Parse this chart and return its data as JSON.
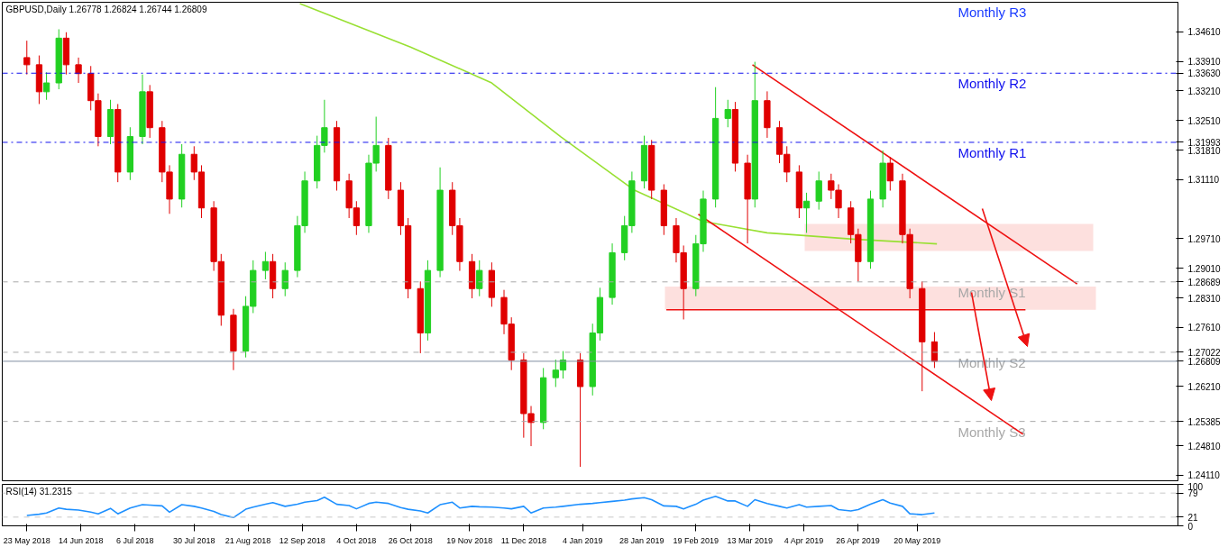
{
  "chart_data": [
    {
      "type": "candlestick",
      "title": "GBPUSD,Daily 1.26778 1.26824 1.26744 1.26809",
      "tick_labels": "y",
      "grid": false,
      "xlim": [
        "2018-05-13",
        "2019-09-03"
      ],
      "ylim": [
        1.2398,
        1.3531
      ],
      "yticks": [
        {
          "value": 1.2411,
          "label": "1.24110"
        },
        {
          "value": 1.2481,
          "label": "1.24810"
        },
        {
          "value": 1.25385,
          "label": "1.25385"
        },
        {
          "value": 1.2621,
          "label": "1.26210"
        },
        {
          "value": 1.26809,
          "label": "1.26809"
        },
        {
          "value": 1.27022,
          "label": "1.27022"
        },
        {
          "value": 1.2761,
          "label": "1.27610"
        },
        {
          "value": 1.2831,
          "label": "1.28310"
        },
        {
          "value": 1.28689,
          "label": "1.28689"
        },
        {
          "value": 1.2901,
          "label": "1.29010"
        },
        {
          "value": 1.2971,
          "label": "1.29710"
        },
        {
          "value": 1.3111,
          "label": "1.31110"
        },
        {
          "value": 1.3181,
          "label": "1.31810"
        },
        {
          "value": 1.31993,
          "label": "1.31993"
        },
        {
          "value": 1.3251,
          "label": "1.32510"
        },
        {
          "value": 1.3321,
          "label": "1.33210"
        },
        {
          "value": 1.3363,
          "label": "1.33630"
        },
        {
          "value": 1.3391,
          "label": "1.33910"
        },
        {
          "value": 1.3461,
          "label": "1.34610"
        }
      ],
      "x": [
        "2018-05-23",
        "2018-05-28",
        "2018-05-31",
        "2018-06-05",
        "2018-06-08",
        "2018-06-13",
        "2018-06-18",
        "2018-06-21",
        "2018-06-26",
        "2018-06-29",
        "2018-07-04",
        "2018-07-09",
        "2018-07-12",
        "2018-07-17",
        "2018-07-20",
        "2018-07-25",
        "2018-07-30",
        "2018-08-02",
        "2018-08-07",
        "2018-08-10",
        "2018-08-15",
        "2018-08-20",
        "2018-08-23",
        "2018-08-28",
        "2018-08-31",
        "2018-09-05",
        "2018-09-10",
        "2018-09-13",
        "2018-09-18",
        "2018-09-21",
        "2018-09-26",
        "2018-10-01",
        "2018-10-04",
        "2018-10-09",
        "2018-10-12",
        "2018-10-17",
        "2018-10-22",
        "2018-10-25",
        "2018-10-30",
        "2018-11-02",
        "2018-11-07",
        "2018-11-12",
        "2018-11-15",
        "2018-11-20",
        "2018-11-23",
        "2018-11-28",
        "2018-12-03",
        "2018-12-06",
        "2018-12-11",
        "2018-12-14",
        "2018-12-19",
        "2018-12-24",
        "2018-12-27",
        "2019-01-03",
        "2019-01-08",
        "2019-01-11",
        "2019-01-16",
        "2019-01-21",
        "2019-01-24",
        "2019-01-29",
        "2019-02-01",
        "2019-02-06",
        "2019-02-11",
        "2019-02-14",
        "2019-02-19",
        "2019-02-22",
        "2019-02-27",
        "2019-03-04",
        "2019-03-07",
        "2019-03-12",
        "2019-03-15",
        "2019-03-20",
        "2019-03-25",
        "2019-03-28",
        "2019-04-02",
        "2019-04-05",
        "2019-04-10",
        "2019-04-15",
        "2019-04-18",
        "2019-04-23",
        "2019-04-26",
        "2019-05-01",
        "2019-05-06",
        "2019-05-09",
        "2019-05-14",
        "2019-05-17",
        "2019-05-22",
        "2019-05-27"
      ],
      "ohlc": [
        [
          1.34,
          1.344,
          1.336,
          1.3383
        ],
        [
          1.3383,
          1.3405,
          1.329,
          1.3319
        ],
        [
          1.3319,
          1.3365,
          1.33,
          1.334
        ],
        [
          1.334,
          1.3467,
          1.3325,
          1.3446
        ],
        [
          1.3446,
          1.346,
          1.336,
          1.3383
        ],
        [
          1.3383,
          1.34,
          1.334,
          1.3362
        ],
        [
          1.3362,
          1.338,
          1.3275,
          1.3298
        ],
        [
          1.3298,
          1.3315,
          1.319,
          1.3213
        ],
        [
          1.3213,
          1.33,
          1.3195,
          1.3277
        ],
        [
          1.3277,
          1.329,
          1.3105,
          1.3129
        ],
        [
          1.3129,
          1.3235,
          1.311,
          1.3213
        ],
        [
          1.3213,
          1.336,
          1.3195,
          1.3319
        ],
        [
          1.3319,
          1.3335,
          1.321,
          1.3234
        ],
        [
          1.3234,
          1.325,
          1.3105,
          1.3129
        ],
        [
          1.3129,
          1.3145,
          1.303,
          1.3065
        ],
        [
          1.3065,
          1.3195,
          1.3045,
          1.3171
        ],
        [
          1.3171,
          1.319,
          1.311,
          1.3129
        ],
        [
          1.3129,
          1.3145,
          1.302,
          1.3044
        ],
        [
          1.3044,
          1.306,
          1.2895,
          1.2917
        ],
        [
          1.2917,
          1.2935,
          1.2765,
          1.279
        ],
        [
          1.279,
          1.2805,
          1.266,
          1.2705
        ],
        [
          1.2705,
          1.2835,
          1.269,
          1.2811
        ],
        [
          1.2811,
          1.292,
          1.2795,
          1.2896
        ],
        [
          1.2896,
          1.294,
          1.2875,
          1.2917
        ],
        [
          1.2917,
          1.2935,
          1.283,
          1.2853
        ],
        [
          1.2853,
          1.2915,
          1.2835,
          1.2896
        ],
        [
          1.2896,
          1.3025,
          1.288,
          1.3002
        ],
        [
          1.3002,
          1.313,
          1.2985,
          1.3108
        ],
        [
          1.3108,
          1.3215,
          1.309,
          1.3192
        ],
        [
          1.3192,
          1.33,
          1.3175,
          1.3234
        ],
        [
          1.3234,
          1.325,
          1.3085,
          1.3108
        ],
        [
          1.3108,
          1.3125,
          1.302,
          1.3044
        ],
        [
          1.3044,
          1.306,
          1.298,
          1.3002
        ],
        [
          1.3002,
          1.317,
          1.2985,
          1.315
        ],
        [
          1.315,
          1.326,
          1.313,
          1.3192
        ],
        [
          1.3192,
          1.321,
          1.3065,
          1.3086
        ],
        [
          1.3086,
          1.3105,
          1.298,
          1.3002
        ],
        [
          1.3002,
          1.302,
          1.283,
          1.2853
        ],
        [
          1.2853,
          1.287,
          1.27,
          1.2748
        ],
        [
          1.2748,
          1.292,
          1.273,
          1.2896
        ],
        [
          1.2896,
          1.314,
          1.288,
          1.3086
        ],
        [
          1.3086,
          1.3105,
          1.298,
          1.3002
        ],
        [
          1.3002,
          1.302,
          1.2895,
          1.2917
        ],
        [
          1.2917,
          1.2935,
          1.283,
          1.2853
        ],
        [
          1.2853,
          1.292,
          1.2835,
          1.2896
        ],
        [
          1.2896,
          1.2915,
          1.281,
          1.2832
        ],
        [
          1.2832,
          1.285,
          1.2745,
          1.2769
        ],
        [
          1.2769,
          1.2785,
          1.266,
          1.2684
        ],
        [
          1.2684,
          1.27,
          1.25,
          1.2557
        ],
        [
          1.2557,
          1.2575,
          1.248,
          1.2536
        ],
        [
          1.2536,
          1.2665,
          1.252,
          1.2642
        ],
        [
          1.2642,
          1.2685,
          1.262,
          1.266
        ],
        [
          1.266,
          1.2705,
          1.264,
          1.2684
        ],
        [
          1.2684,
          1.27,
          1.2431,
          1.2621
        ],
        [
          1.2621,
          1.277,
          1.26,
          1.2748
        ],
        [
          1.2748,
          1.2855,
          1.273,
          1.2832
        ],
        [
          1.2832,
          1.296,
          1.2815,
          1.2938
        ],
        [
          1.2938,
          1.3025,
          1.292,
          1.3002
        ],
        [
          1.3002,
          1.313,
          1.2985,
          1.3108
        ],
        [
          1.3108,
          1.3215,
          1.309,
          1.3192
        ],
        [
          1.3192,
          1.3205,
          1.3065,
          1.3086
        ],
        [
          1.3086,
          1.31,
          1.298,
          1.3002
        ],
        [
          1.3002,
          1.302,
          1.2915,
          1.2938
        ],
        [
          1.2938,
          1.2955,
          1.278,
          1.2853
        ],
        [
          1.2853,
          1.298,
          1.2835,
          1.2959
        ],
        [
          1.2959,
          1.3085,
          1.294,
          1.3065
        ],
        [
          1.3065,
          1.333,
          1.3045,
          1.3256
        ],
        [
          1.3256,
          1.33,
          1.3235,
          1.3277
        ],
        [
          1.3277,
          1.3295,
          1.313,
          1.315
        ],
        [
          1.315,
          1.317,
          1.296,
          1.3065
        ],
        [
          1.3065,
          1.339,
          1.3045,
          1.3298
        ],
        [
          1.3298,
          1.332,
          1.321,
          1.3234
        ],
        [
          1.3234,
          1.325,
          1.315,
          1.3171
        ],
        [
          1.3171,
          1.319,
          1.3105,
          1.3129
        ],
        [
          1.3129,
          1.3145,
          1.302,
          1.3044
        ],
        [
          1.3044,
          1.308,
          1.2985,
          1.306
        ],
        [
          1.306,
          1.313,
          1.304,
          1.3108
        ],
        [
          1.3108,
          1.3125,
          1.3065,
          1.3086
        ],
        [
          1.3086,
          1.31,
          1.302,
          1.3044
        ],
        [
          1.3044,
          1.306,
          1.296,
          1.2981
        ],
        [
          1.2981,
          1.2995,
          1.287,
          1.2917
        ],
        [
          1.2917,
          1.3085,
          1.29,
          1.3065
        ],
        [
          1.3065,
          1.318,
          1.3045,
          1.315
        ],
        [
          1.315,
          1.3165,
          1.3085,
          1.3108
        ],
        [
          1.3108,
          1.3125,
          1.296,
          1.2981
        ],
        [
          1.2981,
          1.2995,
          1.283,
          1.2853
        ],
        [
          1.2853,
          1.287,
          1.261,
          1.2727
        ],
        [
          1.2727,
          1.275,
          1.2665,
          1.2681
        ]
      ],
      "colors": [
        "#e00000",
        "#e00000",
        "#22d022",
        "#22d022",
        "#e00000",
        "#e00000",
        "#e00000",
        "#e00000",
        "#22d022",
        "#e00000",
        "#22d022",
        "#22d022",
        "#e00000",
        "#e00000",
        "#e00000",
        "#22d022",
        "#e00000",
        "#e00000",
        "#e00000",
        "#e00000",
        "#e00000",
        "#22d022",
        "#22d022",
        "#22d022",
        "#e00000",
        "#22d022",
        "#22d022",
        "#22d022",
        "#22d022",
        "#22d022",
        "#e00000",
        "#e00000",
        "#e00000",
        "#22d022",
        "#22d022",
        "#e00000",
        "#e00000",
        "#e00000",
        "#e00000",
        "#22d022",
        "#22d022",
        "#e00000",
        "#e00000",
        "#e00000",
        "#22d022",
        "#e00000",
        "#e00000",
        "#e00000",
        "#e00000",
        "#e00000",
        "#22d022",
        "#22d022",
        "#22d022",
        "#e00000",
        "#22d022",
        "#22d022",
        "#22d022",
        "#22d022",
        "#22d022",
        "#22d022",
        "#e00000",
        "#e00000",
        "#e00000",
        "#e00000",
        "#22d022",
        "#22d022",
        "#22d022",
        "#22d022",
        "#e00000",
        "#e00000",
        "#22d022",
        "#e00000",
        "#e00000",
        "#e00000",
        "#e00000",
        "#22d022",
        "#22d022",
        "#e00000",
        "#e00000",
        "#e00000",
        "#e00000",
        "#22d022",
        "#22d022",
        "#e00000",
        "#e00000",
        "#e00000",
        "#e00000",
        "#e00000"
      ],
      "series": [
        {
          "type": "line",
          "color": "#99e033",
          "x": [
            "2018-09-11",
            "2018-10-26",
            "2018-11-28",
            "2018-12-26",
            "2019-01-25",
            "2019-02-22",
            "2019-03-20",
            "2019-04-24",
            "2019-05-28"
          ],
          "values": [
            1.3528,
            1.3425,
            1.334,
            1.3213,
            1.3086,
            1.3012,
            1.2985,
            1.297,
            1.2959
          ]
        },
        {
          "type": "line",
          "color": "#ee1111",
          "x": [
            "2019-03-14",
            "2019-07-24"
          ],
          "values": [
            1.3383,
            1.2864
          ]
        },
        {
          "type": "line",
          "color": "#ee1111",
          "x": [
            "2019-02-20",
            "2019-07-02"
          ],
          "values": [
            1.3029,
            1.2508
          ]
        },
        {
          "type": "line",
          "color": "#ee1111",
          "x": [
            "2019-02-07",
            "2019-07-03"
          ],
          "values": [
            1.2803,
            1.2803
          ]
        }
      ],
      "ref_lines": [
        {
          "axis": "y",
          "value": 1.3363,
          "color": "#1010ee",
          "line_style": "dashdot",
          "label": "Monthly R2"
        },
        {
          "axis": "y",
          "value": 1.31993,
          "color": "#1010ee",
          "line_style": "dashdot",
          "label": "Monthly R1"
        },
        {
          "axis": "y",
          "value": 1.28689,
          "color": "#a8a8a8",
          "line_style": "dashed",
          "label": "Monthly S1"
        },
        {
          "axis": "y",
          "value": 1.27022,
          "color": "#a8a8a8",
          "line_style": "dashed",
          "label": "Monthly S2"
        },
        {
          "axis": "y",
          "value": 1.25385,
          "color": "#a8a8a8",
          "line_style": "dashed",
          "label": "Monthly S3"
        },
        {
          "axis": "y",
          "value": 1.26809,
          "color": "#7f8fa0",
          "line_style": "solid"
        }
      ],
      "bands": [
        {
          "axis": "y",
          "from": 1.2942,
          "to": 1.3006,
          "color": "#fde0de"
        },
        {
          "axis": "y",
          "from": 1.2803,
          "to": 1.2858,
          "color": "#fde0de"
        }
      ],
      "annotations": [
        "Monthly R3"
      ]
    },
    {
      "type": "line",
      "title": "RSI(14) 31.2315",
      "grid": false,
      "xlim": [
        "2018-05-13",
        "2019-09-03"
      ],
      "ylim": [
        0,
        100
      ],
      "yticks": [
        0,
        21,
        79,
        100
      ],
      "xticks": [
        {
          "value": "2018-05-23",
          "label": "23 May 2018"
        },
        {
          "value": "2018-06-14",
          "label": "14 Jun 2018"
        },
        {
          "value": "2018-07-06",
          "label": "6 Jul 2018"
        },
        {
          "value": "2018-07-30",
          "label": "30 Jul 2018"
        },
        {
          "value": "2018-08-21",
          "label": "21 Aug 2018"
        },
        {
          "value": "2018-09-12",
          "label": "12 Sep 2018"
        },
        {
          "value": "2018-10-04",
          "label": "4 Oct 2018"
        },
        {
          "value": "2018-10-26",
          "label": "26 Oct 2018"
        },
        {
          "value": "2018-11-19",
          "label": "19 Nov 2018"
        },
        {
          "value": "2018-12-11",
          "label": "11 Dec 2018"
        },
        {
          "value": "2019-01-04",
          "label": "4 Jan 2019"
        },
        {
          "value": "2019-01-28",
          "label": "28 Jan 2019"
        },
        {
          "value": "2019-02-19",
          "label": "19 Feb 2019"
        },
        {
          "value": "2019-03-13",
          "label": "13 Mar 2019"
        },
        {
          "value": "2019-04-04",
          "label": "4 Apr 2019"
        },
        {
          "value": "2019-04-26",
          "label": "26 Apr 2019"
        },
        {
          "value": "2019-05-20",
          "label": "20 May 2019"
        }
      ],
      "x": [
        "2018-05-23",
        "2018-05-28",
        "2018-05-31",
        "2018-06-05",
        "2018-06-08",
        "2018-06-13",
        "2018-06-18",
        "2018-06-21",
        "2018-06-26",
        "2018-06-29",
        "2018-07-04",
        "2018-07-09",
        "2018-07-12",
        "2018-07-17",
        "2018-07-20",
        "2018-07-25",
        "2018-07-30",
        "2018-08-02",
        "2018-08-07",
        "2018-08-10",
        "2018-08-15",
        "2018-08-20",
        "2018-08-23",
        "2018-08-28",
        "2018-08-31",
        "2018-09-05",
        "2018-09-10",
        "2018-09-13",
        "2018-09-18",
        "2018-09-21",
        "2018-09-26",
        "2018-10-01",
        "2018-10-04",
        "2018-10-09",
        "2018-10-12",
        "2018-10-17",
        "2018-10-22",
        "2018-10-25",
        "2018-10-30",
        "2018-11-02",
        "2018-11-07",
        "2018-11-12",
        "2018-11-15",
        "2018-11-20",
        "2018-11-23",
        "2018-11-28",
        "2018-12-03",
        "2018-12-06",
        "2018-12-11",
        "2018-12-14",
        "2018-12-19",
        "2018-12-24",
        "2018-12-27",
        "2019-01-03",
        "2019-01-08",
        "2019-01-11",
        "2019-01-16",
        "2019-01-21",
        "2019-01-24",
        "2019-01-29",
        "2019-02-01",
        "2019-02-06",
        "2019-02-11",
        "2019-02-14",
        "2019-02-19",
        "2019-02-22",
        "2019-02-27",
        "2019-03-04",
        "2019-03-07",
        "2019-03-12",
        "2019-03-15",
        "2019-03-20",
        "2019-03-25",
        "2019-03-28",
        "2019-04-02",
        "2019-04-05",
        "2019-04-10",
        "2019-04-15",
        "2019-04-18",
        "2019-04-23",
        "2019-04-26",
        "2019-05-01",
        "2019-05-06",
        "2019-05-09",
        "2019-05-14",
        "2019-05-17",
        "2019-05-22",
        "2019-05-27"
      ],
      "series": [
        {
          "color": "#1e90ff",
          "values": [
            25,
            28,
            31,
            43,
            40,
            38,
            33,
            29,
            42,
            29,
            43,
            51,
            50,
            48,
            33,
            51,
            47,
            43,
            35,
            27,
            20,
            40,
            45,
            52,
            56,
            47,
            52,
            57,
            61,
            69,
            52,
            49,
            41,
            54,
            57,
            54,
            44,
            40,
            36,
            31,
            51,
            57,
            43,
            47,
            46,
            45,
            43,
            41,
            47,
            31,
            43,
            45,
            47,
            52,
            54,
            56,
            59,
            62,
            65,
            68,
            63,
            48,
            47,
            41,
            52,
            62,
            71,
            60,
            60,
            47,
            63,
            54,
            47,
            43,
            51,
            45,
            47,
            49,
            39,
            36,
            39,
            52,
            63,
            55,
            47,
            29,
            27,
            31
          ]
        }
      ],
      "ref_lines": [
        {
          "axis": "y",
          "value": 79,
          "color": "#c8c8c8",
          "line_style": "dashed"
        },
        {
          "axis": "y",
          "value": 21,
          "color": "#c8c8c8",
          "line_style": "dashed"
        }
      ]
    }
  ]
}
